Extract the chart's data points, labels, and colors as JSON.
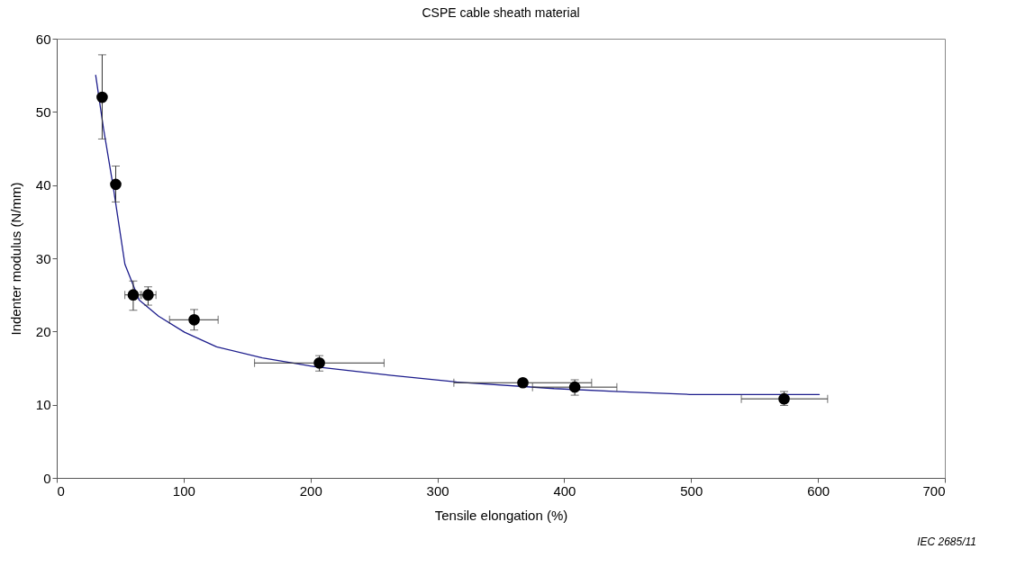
{
  "chart_data": {
    "type": "scatter",
    "title": "CSPE cable sheath material",
    "xlabel": "Tensile elongation   (%)",
    "ylabel": "Indenter modulus   (N/mm)",
    "annotations": [
      "IEC   2685/11"
    ],
    "xlim": [
      0,
      700
    ],
    "xticks": [
      0,
      100,
      200,
      300,
      400,
      500,
      600,
      700
    ],
    "ylim": [
      0,
      60
    ],
    "yticks": [
      0,
      10,
      20,
      30,
      40,
      50,
      60
    ],
    "grid": false,
    "series": [
      {
        "type": "line",
        "color": "#1c1c8c",
        "line_style": "solid",
        "marker": "none",
        "x": [
          30.7,
          36.8,
          44.5,
          53.7,
          64.9,
          80.2,
          100.7,
          126,
          162,
          203,
          264,
          315,
          392,
          443,
          499,
          601
        ],
        "values": [
          55.0,
          47.8,
          39.8,
          29.2,
          24.3,
          22.1,
          19.9,
          17.9,
          16.4,
          15.2,
          14.0,
          13.1,
          12.2,
          11.8,
          11.4,
          11.4
        ]
      },
      {
        "type": "scatter",
        "color": "#000000",
        "marker": "circle",
        "x": [
          35.8,
          46.5,
          60.3,
          72.0,
          108.3,
          207,
          367.4,
          408.3,
          573.3
        ],
        "values": [
          52.0,
          40.1,
          25.0,
          25.0,
          21.6,
          15.7,
          13.0,
          12.4,
          10.8
        ],
        "errors": [
          [
            46.3,
            57.8
          ],
          [
            37.7,
            42.6
          ],
          [
            22.9,
            26.9
          ],
          [
            23.6,
            26.1
          ],
          [
            20.2,
            23.0
          ],
          [
            14.6,
            16.7
          ],
          null,
          [
            11.3,
            13.4
          ],
          [
            9.9,
            11.8
          ]
        ],
        "xerrors": [
          null,
          null,
          [
            53.7,
            66.9
          ],
          [
            65.9,
            78.2
          ],
          [
            88.9,
            127.2
          ],
          [
            155.9,
            258
          ],
          [
            313,
            421.6
          ],
          [
            375,
            441.5
          ],
          [
            539.6,
            607.6
          ]
        ]
      }
    ]
  }
}
